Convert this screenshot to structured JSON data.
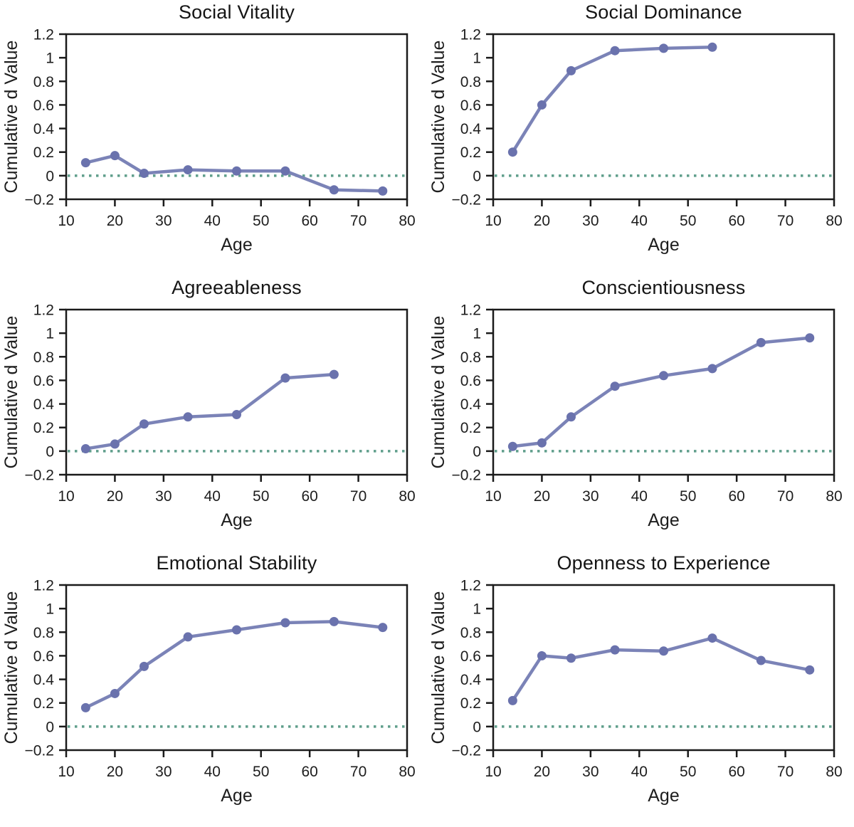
{
  "page": {
    "background": "#ffffff"
  },
  "colors": {
    "line": "#7b83b7",
    "marker": "#6a72ad",
    "zero_line": "#5f9e8b",
    "axis": "#1a1a1a",
    "text": "#1d1d1d"
  },
  "axes": {
    "xlabel": "Age",
    "ylabel": "Cumulative d Value",
    "xlim": [
      10,
      80
    ],
    "ylim": [
      -0.2,
      1.2
    ],
    "xticks": [
      10,
      20,
      30,
      40,
      50,
      60,
      70,
      80
    ],
    "xtick_labels": [
      "10",
      "20",
      "30",
      "40",
      "50",
      "60",
      "70",
      "80"
    ],
    "yticks": [
      1.2,
      1,
      0.8,
      0.6,
      0.4,
      0.2,
      0,
      -0.2
    ],
    "ytick_labels": [
      "1.2",
      "1",
      "0.8",
      "0.6",
      "0.4",
      "0.2",
      "0",
      "−0.2"
    ],
    "grid": false,
    "zero_reference_line": true
  },
  "chart_data": [
    {
      "type": "line",
      "title": "Social Vitality",
      "xlabel": "Age",
      "ylabel": "Cumulative d Value",
      "x": [
        14,
        20,
        26,
        35,
        45,
        55,
        65,
        75
      ],
      "y": [
        0.11,
        0.17,
        0.02,
        0.05,
        0.04,
        0.04,
        -0.12,
        -0.13
      ]
    },
    {
      "type": "line",
      "title": "Social Dominance",
      "xlabel": "Age",
      "ylabel": "Cumulative d Value",
      "x": [
        14,
        20,
        26,
        35,
        45,
        55
      ],
      "y": [
        0.2,
        0.6,
        0.89,
        1.06,
        1.08,
        1.09
      ]
    },
    {
      "type": "line",
      "title": "Agreeableness",
      "xlabel": "Age",
      "ylabel": "Cumulative d Value",
      "x": [
        14,
        20,
        26,
        35,
        45,
        55,
        65
      ],
      "y": [
        0.02,
        0.06,
        0.23,
        0.29,
        0.31,
        0.62,
        0.65
      ]
    },
    {
      "type": "line",
      "title": "Conscientiousness",
      "xlabel": "Age",
      "ylabel": "Cumulative d Value",
      "x": [
        14,
        20,
        26,
        35,
        45,
        55,
        65,
        75
      ],
      "y": [
        0.04,
        0.07,
        0.29,
        0.55,
        0.64,
        0.7,
        0.92,
        0.96
      ]
    },
    {
      "type": "line",
      "title": "Emotional Stability",
      "xlabel": "Age",
      "ylabel": "Cumulative d Value",
      "x": [
        14,
        20,
        26,
        35,
        45,
        55,
        65,
        75
      ],
      "y": [
        0.16,
        0.28,
        0.51,
        0.76,
        0.82,
        0.88,
        0.89,
        0.84
      ]
    },
    {
      "type": "line",
      "title": "Openness to Experience",
      "xlabel": "Age",
      "ylabel": "Cumulative d Value",
      "x": [
        14,
        20,
        26,
        35,
        45,
        55,
        65,
        75
      ],
      "y": [
        0.22,
        0.6,
        0.58,
        0.65,
        0.64,
        0.75,
        0.56,
        0.48
      ]
    }
  ]
}
